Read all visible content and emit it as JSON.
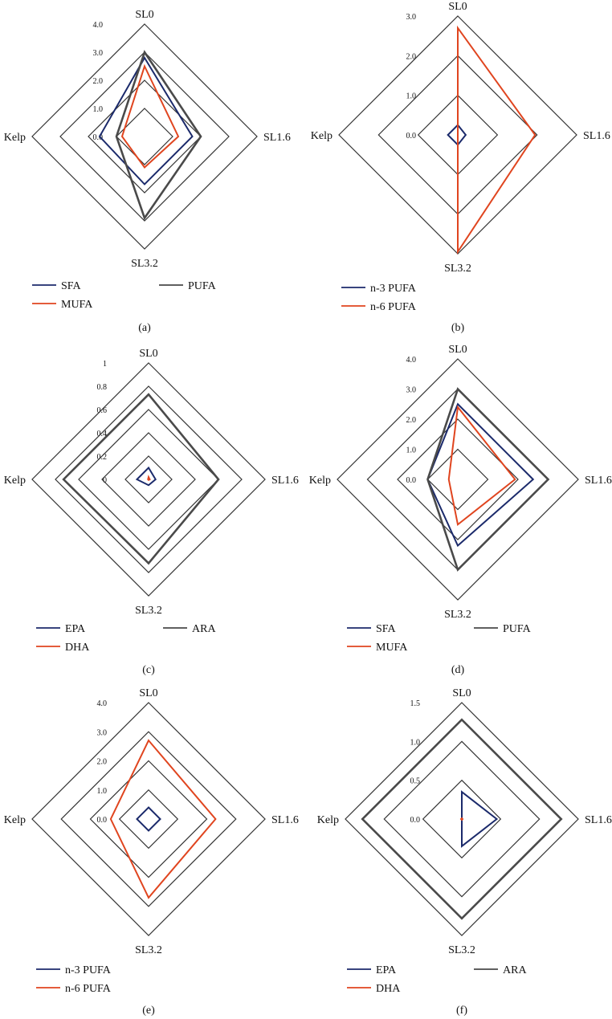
{
  "colors": {
    "blue": "#1b2a6b",
    "orange": "#e0451f",
    "gray": "#4a4a4a",
    "grid": "#333333"
  },
  "chart_data": [
    {
      "panel": "(a)",
      "type": "radar",
      "axes": [
        "SL0",
        "SL1.6",
        "SL3.2",
        "Kelp"
      ],
      "ticks": [
        "0.0",
        "1.0",
        "2.0",
        "3.0",
        "4.0"
      ],
      "rmax": 4,
      "series": [
        {
          "name": "SFA",
          "color": "blue",
          "values": [
            2.8,
            1.7,
            1.7,
            1.6
          ]
        },
        {
          "name": "MUFA",
          "color": "orange",
          "values": [
            2.5,
            1.2,
            1.1,
            0.8
          ]
        },
        {
          "name": "PUFA",
          "color": "gray",
          "values": [
            3.0,
            2.0,
            2.9,
            1.0
          ]
        }
      ],
      "legend": {
        "layout": "two-col"
      }
    },
    {
      "panel": "(b)",
      "type": "radar",
      "axes": [
        "SL0",
        "SL1.6",
        "SL3.2",
        "Kelp"
      ],
      "ticks": [
        "0.0",
        "1.0",
        "2.0",
        "3.0"
      ],
      "rmax": 3,
      "series": [
        {
          "name": "n-3 PUFA",
          "color": "blue",
          "values": [
            0.25,
            0.2,
            0.25,
            0.25
          ]
        },
        {
          "name": "n-6 PUFA",
          "color": "orange",
          "values": [
            2.7,
            1.95,
            2.95,
            0.0
          ]
        }
      ],
      "legend": {
        "layout": "one-col"
      }
    },
    {
      "panel": "(c)",
      "type": "radar",
      "axes": [
        "SL0",
        "SL1.6",
        "SL3.2",
        "Kelp"
      ],
      "ticks": [
        "0",
        "0.2",
        "0.4",
        "0.6",
        "0.8",
        "1"
      ],
      "rmax": 1,
      "series": [
        {
          "name": "EPA",
          "color": "blue",
          "values": [
            0.1,
            0.06,
            0.05,
            0.1
          ]
        },
        {
          "name": "DHA",
          "color": "orange",
          "values": [
            0.02,
            0.01,
            0.005,
            0.005
          ]
        },
        {
          "name": "ARA",
          "color": "gray",
          "values": [
            0.73,
            0.6,
            0.72,
            0.73
          ]
        }
      ],
      "legend": {
        "layout": "two-col"
      }
    },
    {
      "panel": "(d)",
      "type": "radar",
      "axes": [
        "SL0",
        "SL1.6",
        "SL3.2",
        "Kelp"
      ],
      "ticks": [
        "0.0",
        "1.0",
        "2.0",
        "3.0",
        "4.0"
      ],
      "rmax": 4,
      "series": [
        {
          "name": "SFA",
          "color": "blue",
          "values": [
            2.5,
            2.5,
            2.2,
            1.0
          ]
        },
        {
          "name": "MUFA",
          "color": "orange",
          "values": [
            2.4,
            1.9,
            1.5,
            0.3
          ]
        },
        {
          "name": "PUFA",
          "color": "gray",
          "values": [
            3.0,
            3.0,
            3.0,
            1.0
          ]
        }
      ],
      "legend": {
        "layout": "two-col"
      }
    },
    {
      "panel": "(e)",
      "type": "radar",
      "axes": [
        "SL0",
        "SL1.6",
        "SL3.2",
        "Kelp"
      ],
      "ticks": [
        "0.0",
        "1.0",
        "2.0",
        "3.0",
        "4.0"
      ],
      "rmax": 4,
      "series": [
        {
          "name": "n-3 PUFA",
          "color": "blue",
          "values": [
            0.4,
            0.4,
            0.4,
            0.4
          ]
        },
        {
          "name": "n-6 PUFA",
          "color": "orange",
          "values": [
            2.7,
            2.3,
            2.7,
            1.3
          ]
        }
      ],
      "legend": {
        "layout": "one-col"
      }
    },
    {
      "panel": "(f)",
      "type": "radar",
      "axes": [
        "SL0",
        "SL1.6",
        "SL3.2",
        "Kelp"
      ],
      "ticks": [
        "0.0",
        "0.5",
        "1.0",
        "1.5"
      ],
      "rmax": 1.5,
      "series": [
        {
          "name": "EPA",
          "color": "blue",
          "values": [
            0.35,
            0.45,
            0.35,
            0.0
          ]
        },
        {
          "name": "DHA",
          "color": "orange",
          "values": [
            0.01,
            0.01,
            0.01,
            0.01
          ]
        },
        {
          "name": "ARA",
          "color": "gray",
          "values": [
            1.28,
            1.28,
            1.28,
            1.28
          ]
        }
      ],
      "legend": {
        "layout": "two-col"
      }
    }
  ]
}
